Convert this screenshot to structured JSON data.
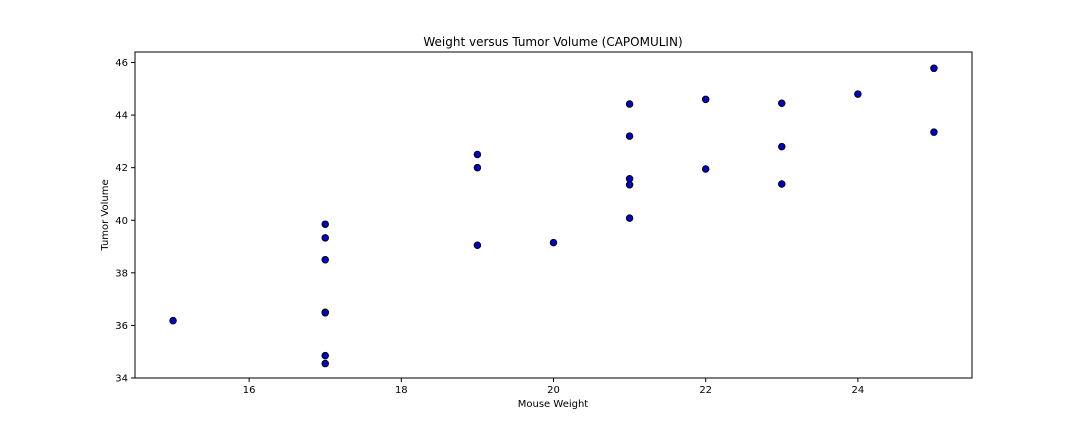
{
  "chart_data": {
    "type": "scatter",
    "title": "Weight versus Tumor Volume (CAPOMULIN)",
    "xlabel": "Mouse Weight",
    "ylabel": "Tumor Volume",
    "xlim": [
      14.5,
      25.5
    ],
    "ylim": [
      34,
      46.4
    ],
    "xticks": [
      16,
      18,
      20,
      22,
      24
    ],
    "yticks": [
      34,
      36,
      38,
      40,
      42,
      44,
      46
    ],
    "grid": false,
    "marker_color": "#0000cd",
    "marker_edge_color": "#000000",
    "points": [
      {
        "x": 15,
        "y": 36.18
      },
      {
        "x": 17,
        "y": 39.85
      },
      {
        "x": 17,
        "y": 39.33
      },
      {
        "x": 17,
        "y": 38.5
      },
      {
        "x": 17,
        "y": 36.5
      },
      {
        "x": 17,
        "y": 36.48
      },
      {
        "x": 17,
        "y": 34.85
      },
      {
        "x": 17,
        "y": 34.55
      },
      {
        "x": 19,
        "y": 42.5
      },
      {
        "x": 19,
        "y": 42.0
      },
      {
        "x": 19,
        "y": 39.05
      },
      {
        "x": 20,
        "y": 39.15
      },
      {
        "x": 21,
        "y": 44.42
      },
      {
        "x": 21,
        "y": 43.2
      },
      {
        "x": 21,
        "y": 41.58
      },
      {
        "x": 21,
        "y": 41.35
      },
      {
        "x": 21,
        "y": 40.08
      },
      {
        "x": 22,
        "y": 44.6
      },
      {
        "x": 22,
        "y": 41.95
      },
      {
        "x": 23,
        "y": 44.45
      },
      {
        "x": 23,
        "y": 42.8
      },
      {
        "x": 23,
        "y": 41.38
      },
      {
        "x": 24,
        "y": 44.8
      },
      {
        "x": 25,
        "y": 45.78
      },
      {
        "x": 25,
        "y": 43.35
      }
    ]
  }
}
